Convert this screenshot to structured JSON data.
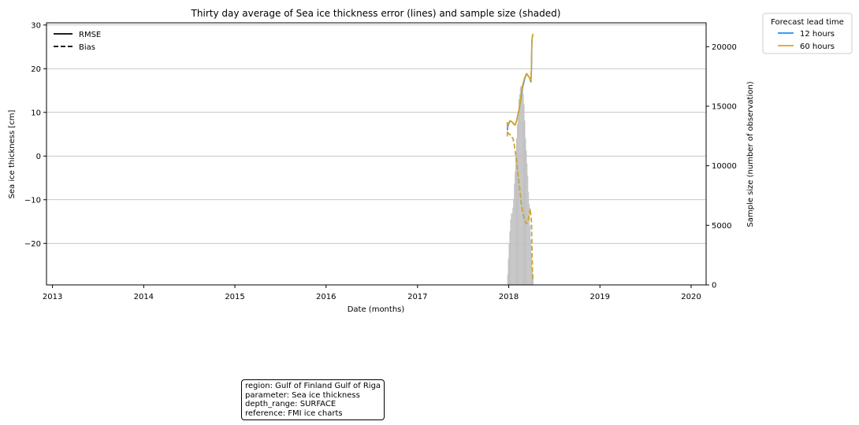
{
  "chart_data": {
    "type": "line",
    "title": "Thirty day average of Sea ice thickness error (lines) and sample size (shaded)",
    "xlabel": "Date (months)",
    "ylabel": "Sea ice thickness [cm]",
    "y2label": "Sample size (number of observation)",
    "x_ticks": [
      "2013",
      "2014",
      "2015",
      "2016",
      "2017",
      "2018",
      "2019",
      "2020"
    ],
    "y_ticks": [
      -20,
      -10,
      0,
      10,
      20,
      30
    ],
    "y2_ticks": [
      0,
      5000,
      10000,
      15000,
      20000
    ],
    "xlim": [
      "2012-12-08",
      "2020-03-01"
    ],
    "ylim": [
      -29.5,
      30.5
    ],
    "y2lim": [
      0,
      22000
    ],
    "grid": "horizontal",
    "style_legend": {
      "entries": [
        {
          "label": "RMSE",
          "dash": "solid"
        },
        {
          "label": "Bias",
          "dash": "dashed"
        }
      ],
      "placement": "top-left"
    },
    "lead_legend": {
      "title": "Forecast lead time",
      "entries": [
        {
          "label": "12 hours",
          "color": "#1e90ff"
        },
        {
          "label": "60 hours",
          "color": "#daa520"
        }
      ],
      "placement": "outside-top-right"
    },
    "series": [
      {
        "name": "12 hours",
        "metric": "RMSE",
        "color": "#1e90ff",
        "x": [
          "2017-12-26",
          "2017-12-27",
          "2017-12-28",
          "2017-12-30",
          "2018-01-02",
          "2018-01-06",
          "2018-01-10",
          "2018-01-14",
          "2018-01-18",
          "2018-01-22",
          "2018-01-27",
          "2018-02-01",
          "2018-02-05",
          "2018-02-09",
          "2018-02-13",
          "2018-02-17",
          "2018-02-21",
          "2018-02-25",
          "2018-03-01",
          "2018-03-05",
          "2018-03-09",
          "2018-03-13",
          "2018-03-17",
          "2018-03-21",
          "2018-03-25",
          "2018-03-28",
          "2018-03-31",
          "2018-04-02",
          "2018-04-03",
          "2018-04-04",
          "2018-04-05",
          "2018-04-06",
          "2018-04-07",
          "2018-04-08"
        ],
        "values": [
          7.5,
          6.0,
          6.5,
          7.0,
          7.5,
          8.0,
          8.0,
          7.8,
          7.6,
          7.3,
          7.2,
          8.0,
          9.0,
          10.0,
          11.0,
          12.5,
          14.0,
          15.5,
          16.5,
          17.5,
          18.2,
          18.8,
          18.6,
          18.2,
          18.0,
          17.5,
          17.0,
          20.0,
          24.0,
          26.0,
          27.0,
          27.5,
          27.6,
          27.8
        ]
      },
      {
        "name": "60 hours",
        "metric": "RMSE",
        "color": "#daa520",
        "x": [
          "2017-12-26",
          "2017-12-27",
          "2017-12-28",
          "2017-12-30",
          "2018-01-02",
          "2018-01-06",
          "2018-01-10",
          "2018-01-14",
          "2018-01-18",
          "2018-01-22",
          "2018-01-27",
          "2018-02-01",
          "2018-02-05",
          "2018-02-09",
          "2018-02-13",
          "2018-02-17",
          "2018-02-21",
          "2018-02-25",
          "2018-03-01",
          "2018-03-05",
          "2018-03-09",
          "2018-03-13",
          "2018-03-17",
          "2018-03-21",
          "2018-03-25",
          "2018-03-28",
          "2018-03-31",
          "2018-04-02",
          "2018-04-03",
          "2018-04-04",
          "2018-04-05",
          "2018-04-06",
          "2018-04-07",
          "2018-04-08"
        ],
        "values": [
          7.8,
          6.5,
          7.0,
          7.2,
          7.7,
          8.1,
          8.0,
          7.8,
          7.5,
          7.2,
          7.1,
          7.9,
          9.0,
          10.2,
          11.2,
          12.8,
          14.5,
          16.0,
          17.0,
          17.8,
          18.4,
          18.9,
          18.7,
          18.3,
          18.0,
          17.2,
          17.5,
          21.0,
          25.0,
          26.5,
          27.2,
          27.6,
          27.8,
          28.0
        ]
      },
      {
        "name": "12 hours",
        "metric": "Bias",
        "color": "#1e90ff",
        "x": [
          "2017-12-26",
          "2017-12-27",
          "2017-12-28",
          "2017-12-30",
          "2018-01-02",
          "2018-01-06",
          "2018-01-10",
          "2018-01-14",
          "2018-01-18",
          "2018-01-22",
          "2018-01-27",
          "2018-02-01",
          "2018-02-05",
          "2018-02-09",
          "2018-02-13",
          "2018-02-17",
          "2018-02-21",
          "2018-02-25",
          "2018-03-01",
          "2018-03-05",
          "2018-03-09",
          "2018-03-13",
          "2018-03-17",
          "2018-03-21",
          "2018-03-25",
          "2018-03-28",
          "2018-03-31",
          "2018-04-02",
          "2018-04-03",
          "2018-04-04",
          "2018-04-05",
          "2018-04-06",
          "2018-04-07",
          "2018-04-08"
        ],
        "values": [
          4.5,
          5.8,
          5.5,
          5.2,
          5.0,
          5.0,
          4.5,
          4.3,
          4.0,
          3.0,
          1.0,
          -1.0,
          -3.0,
          -5.0,
          -7.0,
          -9.0,
          -11.0,
          -12.5,
          -13.5,
          -14.5,
          -15.0,
          -15.5,
          -15.2,
          -14.5,
          -13.0,
          -12.0,
          -14.0,
          -15.0,
          -18.0,
          -22.0,
          -24.0,
          -26.0,
          -27.5,
          -28.5
        ]
      },
      {
        "name": "60 hours",
        "metric": "Bias",
        "color": "#daa520",
        "x": [
          "2017-12-26",
          "2017-12-27",
          "2017-12-28",
          "2017-12-30",
          "2018-01-02",
          "2018-01-06",
          "2018-01-10",
          "2018-01-14",
          "2018-01-18",
          "2018-01-22",
          "2018-01-27",
          "2018-02-01",
          "2018-02-05",
          "2018-02-09",
          "2018-02-13",
          "2018-02-17",
          "2018-02-21",
          "2018-02-25",
          "2018-03-01",
          "2018-03-05",
          "2018-03-09",
          "2018-03-13",
          "2018-03-17",
          "2018-03-21",
          "2018-03-25",
          "2018-03-28",
          "2018-03-31",
          "2018-04-02",
          "2018-04-03",
          "2018-04-04",
          "2018-04-05",
          "2018-04-06",
          "2018-04-07",
          "2018-04-08"
        ],
        "values": [
          4.5,
          5.8,
          5.5,
          5.2,
          5.0,
          5.0,
          4.5,
          4.3,
          4.0,
          3.0,
          1.0,
          -1.0,
          -3.0,
          -5.0,
          -7.0,
          -9.0,
          -11.0,
          -12.5,
          -13.5,
          -14.5,
          -15.0,
          -15.5,
          -15.2,
          -14.5,
          -13.0,
          -12.0,
          -14.0,
          -15.0,
          -18.0,
          -22.0,
          -24.0,
          -26.0,
          -27.5,
          -28.5
        ]
      }
    ],
    "sample_size": {
      "color": "#c0c0c0",
      "x": [
        "2017-12-26",
        "2017-12-29",
        "2018-01-01",
        "2018-01-04",
        "2018-01-07",
        "2018-01-10",
        "2018-01-13",
        "2018-01-16",
        "2018-01-19",
        "2018-01-22",
        "2018-01-25",
        "2018-01-28",
        "2018-01-31",
        "2018-02-03",
        "2018-02-06",
        "2018-02-09",
        "2018-02-12",
        "2018-02-15",
        "2018-02-18",
        "2018-02-21",
        "2018-02-24",
        "2018-02-27",
        "2018-03-02",
        "2018-03-05",
        "2018-03-08",
        "2018-03-11",
        "2018-03-14",
        "2018-03-17",
        "2018-03-20",
        "2018-03-23",
        "2018-03-26",
        "2018-03-29",
        "2018-04-01",
        "2018-04-04",
        "2018-04-07",
        "2018-04-10"
      ],
      "values": [
        900,
        2200,
        3500,
        4500,
        5500,
        6000,
        6000,
        6500,
        7200,
        8500,
        9500,
        10800,
        12300,
        13500,
        14500,
        15600,
        16000,
        16600,
        16700,
        16700,
        16600,
        16000,
        15200,
        13800,
        12300,
        11300,
        10200,
        9200,
        7800,
        6800,
        5000,
        3800,
        2500,
        1400,
        600,
        0
      ]
    }
  },
  "info_box": {
    "line1": "region: Gulf of Finland Gulf of Riga",
    "line2": "parameter: Sea ice thickness",
    "line3": "depth_range: SURFACE",
    "line4": "reference: FMI ice charts"
  }
}
